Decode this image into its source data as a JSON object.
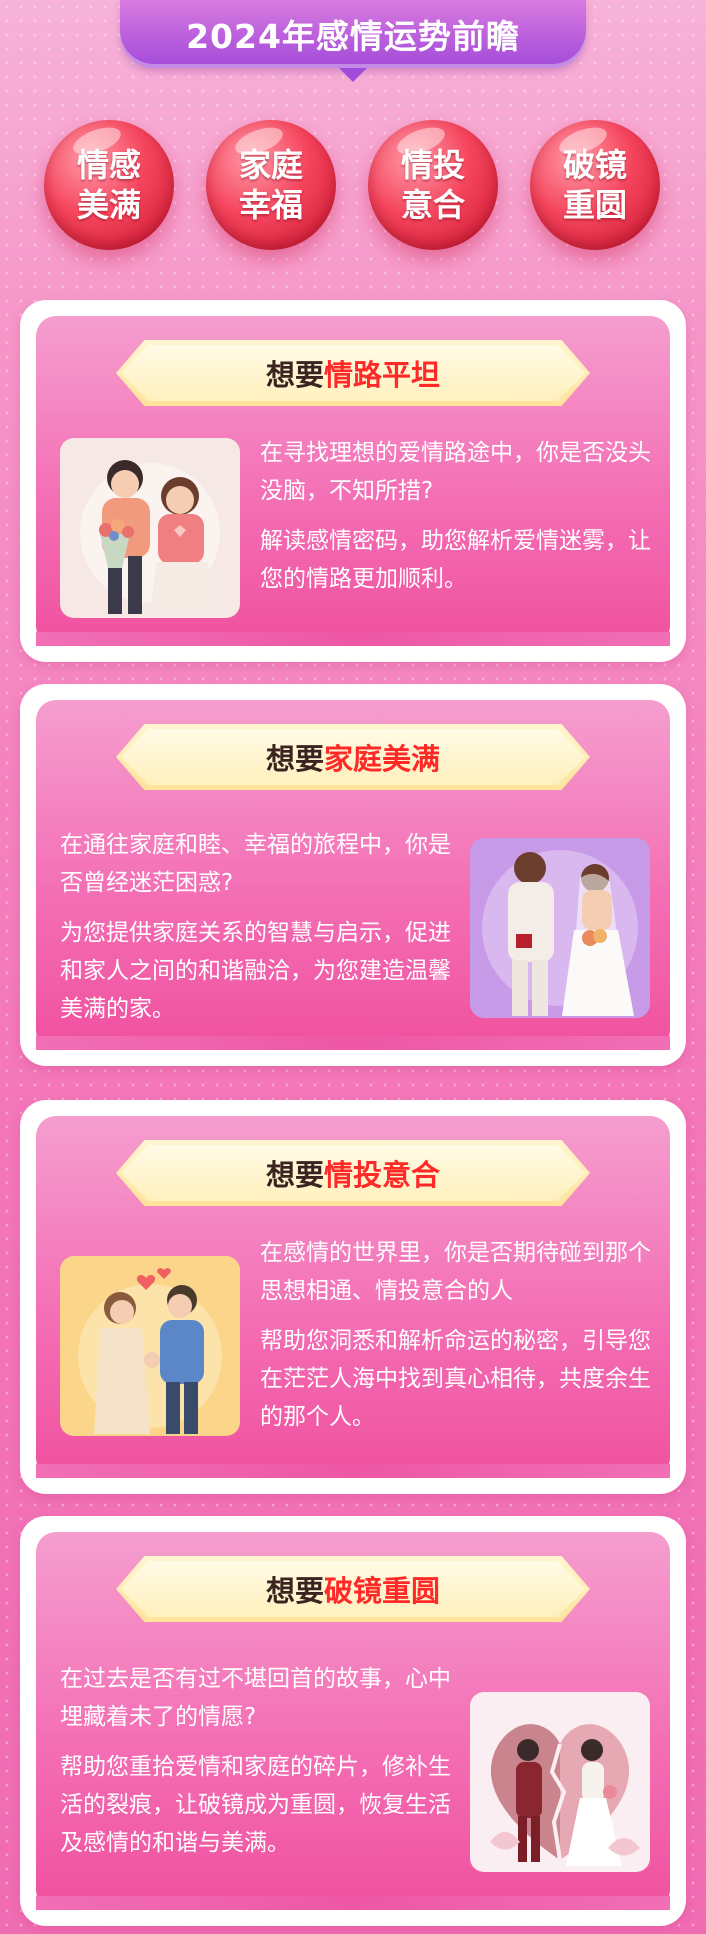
{
  "header": {
    "title": "2024年感情运势前瞻"
  },
  "bubbles": [
    {
      "line1": "情感",
      "line2": "美满"
    },
    {
      "line1": "家庭",
      "line2": "幸福"
    },
    {
      "line1": "情投",
      "line2": "意合"
    },
    {
      "line1": "破镜",
      "line2": "重圆"
    }
  ],
  "cards": [
    {
      "tag_prefix": "想要",
      "tag_key": "情路平坦",
      "p1": "在寻找理想的爱情路途中，你是否没头没脑，不知所措?",
      "p2": "解读感情密码，助您解析爱情迷雾，让您的情路更加顺利。",
      "illustration": "couple-with-flowers"
    },
    {
      "tag_prefix": "想要",
      "tag_key": "家庭美满",
      "p1": "在通往家庭和睦、幸福的旅程中，你是否曾经迷茫困惑?",
      "p2": "为您提供家庭关系的智慧与启示，促进和家人之间的和谐融洽，为您建造温馨美满的家。",
      "illustration": "wedding-couple"
    },
    {
      "tag_prefix": "想要",
      "tag_key": "情投意合",
      "p1": "在感情的世界里，你是否期待碰到那个思想相通、情投意合的人",
      "p2": "帮助您洞悉和解析命运的秘密，引导您在茫茫人海中找到真心相待，共度余生的那个人。",
      "illustration": "couple-holding-hands"
    },
    {
      "tag_prefix": "想要",
      "tag_key": "破镜重圆",
      "p1": "在过去是否有过不堪回首的故事，心中埋藏着未了的情愿?",
      "p2": "帮助您重拾爱情和家庭的碎片，修补生活的裂痕，让破镜成为重圆，恢复生活及感情的和谐与美满。",
      "illustration": "broken-heart-couple"
    }
  ],
  "colors": {
    "accent_red": "#ff2a28",
    "banner_purple": "#a24ad9",
    "card_pink": "#f46fb5"
  }
}
